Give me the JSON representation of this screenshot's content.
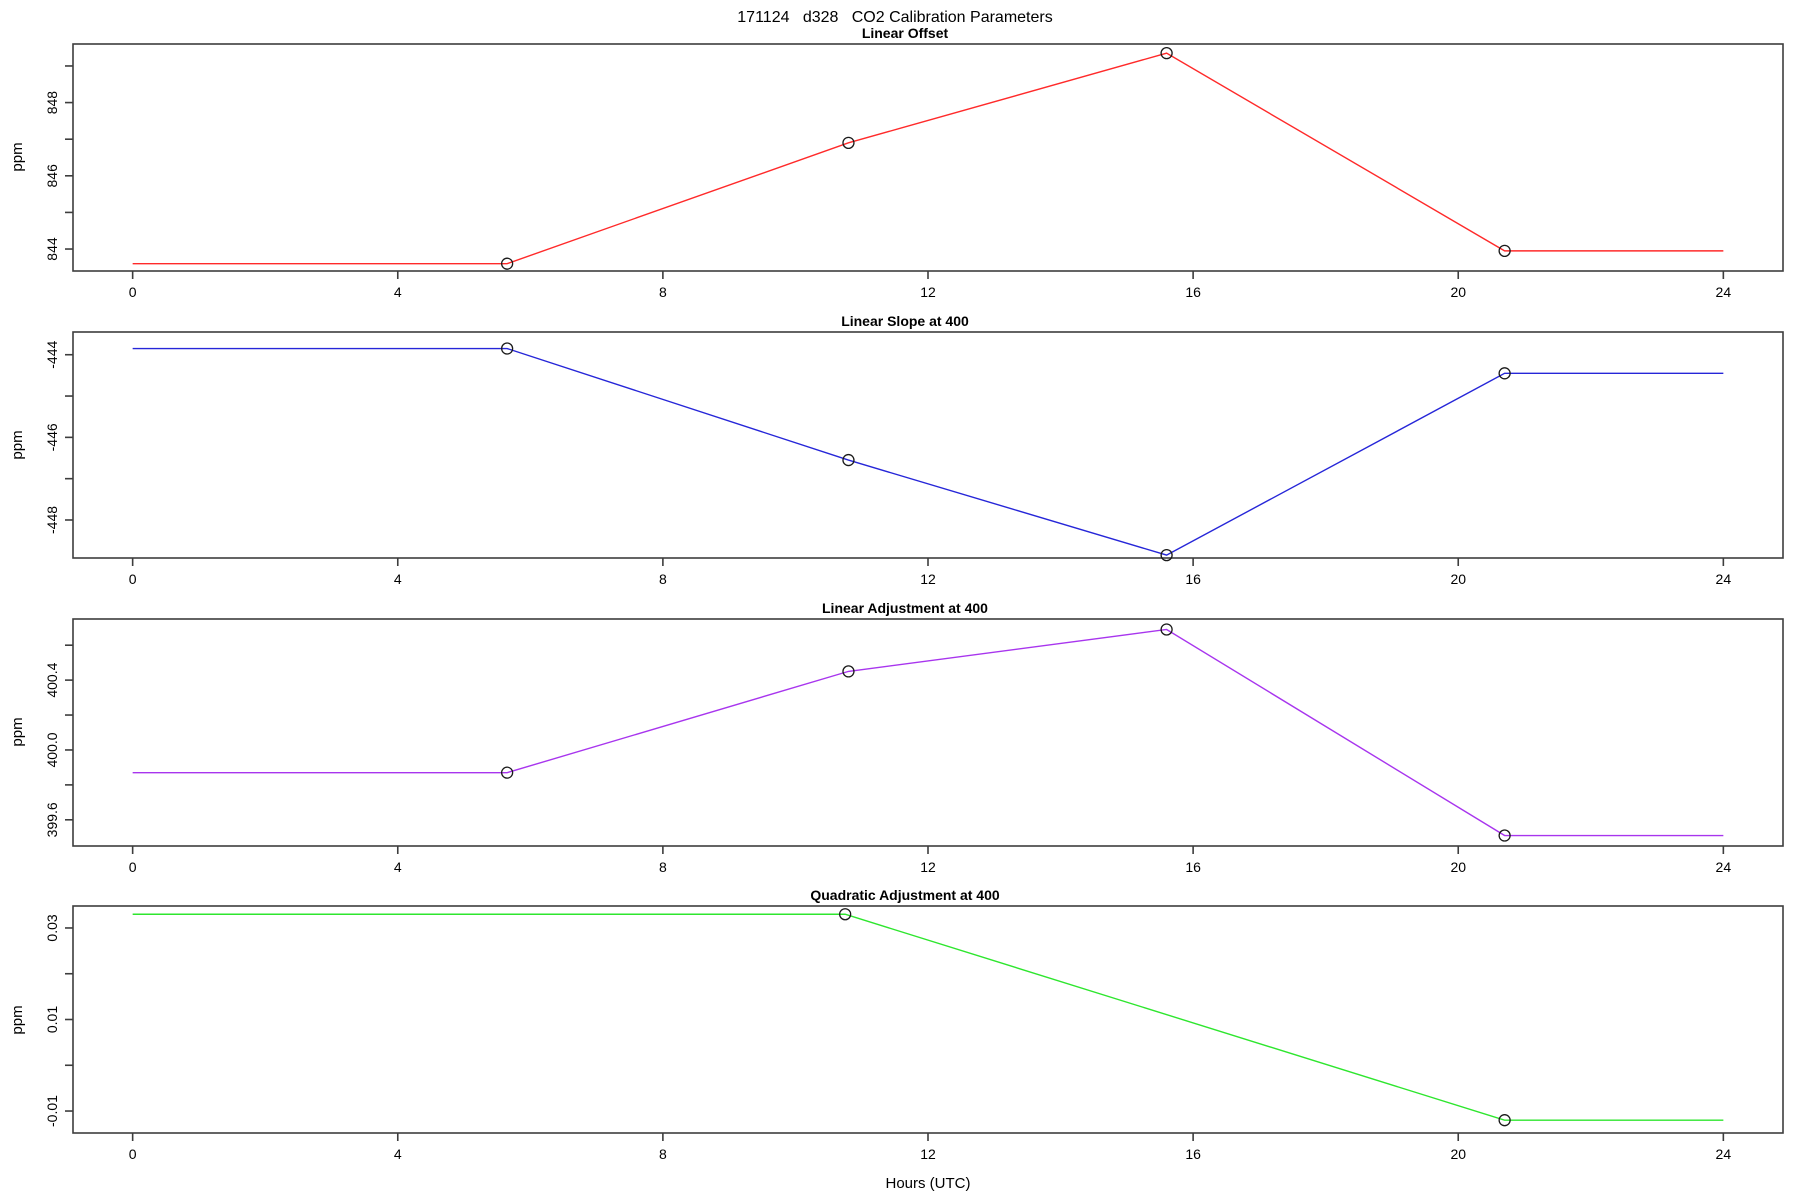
{
  "page": {
    "title": "171124   d328   CO2 Calibration Parameters",
    "xlabel": "Hours (UTC)"
  },
  "chart_data": [
    {
      "type": "line",
      "title": "Linear Offset",
      "ylabel": "ppm",
      "color": "#ff2a2a",
      "x": [
        0,
        5.65,
        10.8,
        15.6,
        20.7,
        24
      ],
      "y": [
        843.6,
        843.6,
        846.9,
        849.35,
        843.95,
        843.95
      ],
      "marker_x": [
        5.65,
        10.8,
        15.6,
        20.7
      ],
      "marker_y": [
        843.6,
        846.9,
        849.35,
        843.95
      ],
      "xlim": [
        -0.9,
        24.9
      ],
      "ylim": [
        843.4,
        849.6
      ],
      "xticks": [
        0,
        4,
        8,
        12,
        16,
        20,
        24
      ],
      "xtick_labels": [
        "0",
        "4",
        "8",
        "12",
        "16",
        "20",
        "24"
      ],
      "yticks": [
        844,
        846,
        848
      ],
      "ytick_labels": [
        "844",
        "846",
        "848"
      ],
      "yticks_minor": [
        845,
        847,
        849
      ],
      "grid": false,
      "legend": "none"
    },
    {
      "type": "line",
      "title": "Linear Slope at 400",
      "ylabel": "ppm",
      "color": "#2626d8",
      "x": [
        0,
        5.65,
        10.8,
        15.6,
        20.7,
        24
      ],
      "y": [
        -443.85,
        -443.85,
        -446.55,
        -448.85,
        -444.45,
        -444.45
      ],
      "marker_x": [
        5.65,
        10.8,
        15.6,
        20.7
      ],
      "marker_y": [
        -443.85,
        -446.55,
        -448.85,
        -444.45
      ],
      "xlim": [
        -0.9,
        24.9
      ],
      "ylim": [
        -448.92,
        -443.45
      ],
      "xticks": [
        0,
        4,
        8,
        12,
        16,
        20,
        24
      ],
      "xtick_labels": [
        "0",
        "4",
        "8",
        "12",
        "16",
        "20",
        "24"
      ],
      "yticks": [
        -448,
        -446,
        -444
      ],
      "ytick_labels": [
        "-448",
        "-446",
        "-444"
      ],
      "yticks_minor": [
        -447,
        -445
      ],
      "grid": false,
      "legend": "none"
    },
    {
      "type": "line",
      "title": "Linear Adjustment at 400",
      "ylabel": "ppm",
      "color": "#a835ee",
      "x": [
        0,
        5.65,
        10.8,
        15.6,
        20.7,
        24
      ],
      "y": [
        399.87,
        399.87,
        400.45,
        400.69,
        399.51,
        399.51
      ],
      "marker_x": [
        5.65,
        10.8,
        15.6,
        20.7
      ],
      "marker_y": [
        399.87,
        400.45,
        400.69,
        399.51
      ],
      "xlim": [
        -0.9,
        24.9
      ],
      "ylim": [
        399.45,
        400.75
      ],
      "xticks": [
        0,
        4,
        8,
        12,
        16,
        20,
        24
      ],
      "xtick_labels": [
        "0",
        "4",
        "8",
        "12",
        "16",
        "20",
        "24"
      ],
      "yticks": [
        399.6,
        400.0,
        400.4
      ],
      "ytick_labels": [
        "399.6",
        "400.0",
        "400.4"
      ],
      "yticks_minor": [
        399.8,
        400.2,
        400.6
      ],
      "grid": false,
      "legend": "none"
    },
    {
      "type": "line",
      "title": "Quadratic Adjustment at 400",
      "ylabel": "ppm",
      "color": "#2ee62e",
      "x": [
        0,
        10.75,
        20.7,
        24
      ],
      "y": [
        0.033,
        0.033,
        -0.012,
        -0.012
      ],
      "marker_x": [
        10.75,
        20.7
      ],
      "marker_y": [
        0.033,
        -0.012
      ],
      "xlim": [
        -0.9,
        24.9
      ],
      "ylim": [
        -0.0148,
        0.0348
      ],
      "xticks": [
        0,
        4,
        8,
        12,
        16,
        20,
        24
      ],
      "xtick_labels": [
        "0",
        "4",
        "8",
        "12",
        "16",
        "20",
        "24"
      ],
      "yticks": [
        -0.01,
        0.01,
        0.03
      ],
      "ytick_labels": [
        "-0.01",
        "0.01",
        "0.03"
      ],
      "yticks_minor": [
        0,
        0.02
      ],
      "grid": false,
      "legend": "none"
    }
  ]
}
